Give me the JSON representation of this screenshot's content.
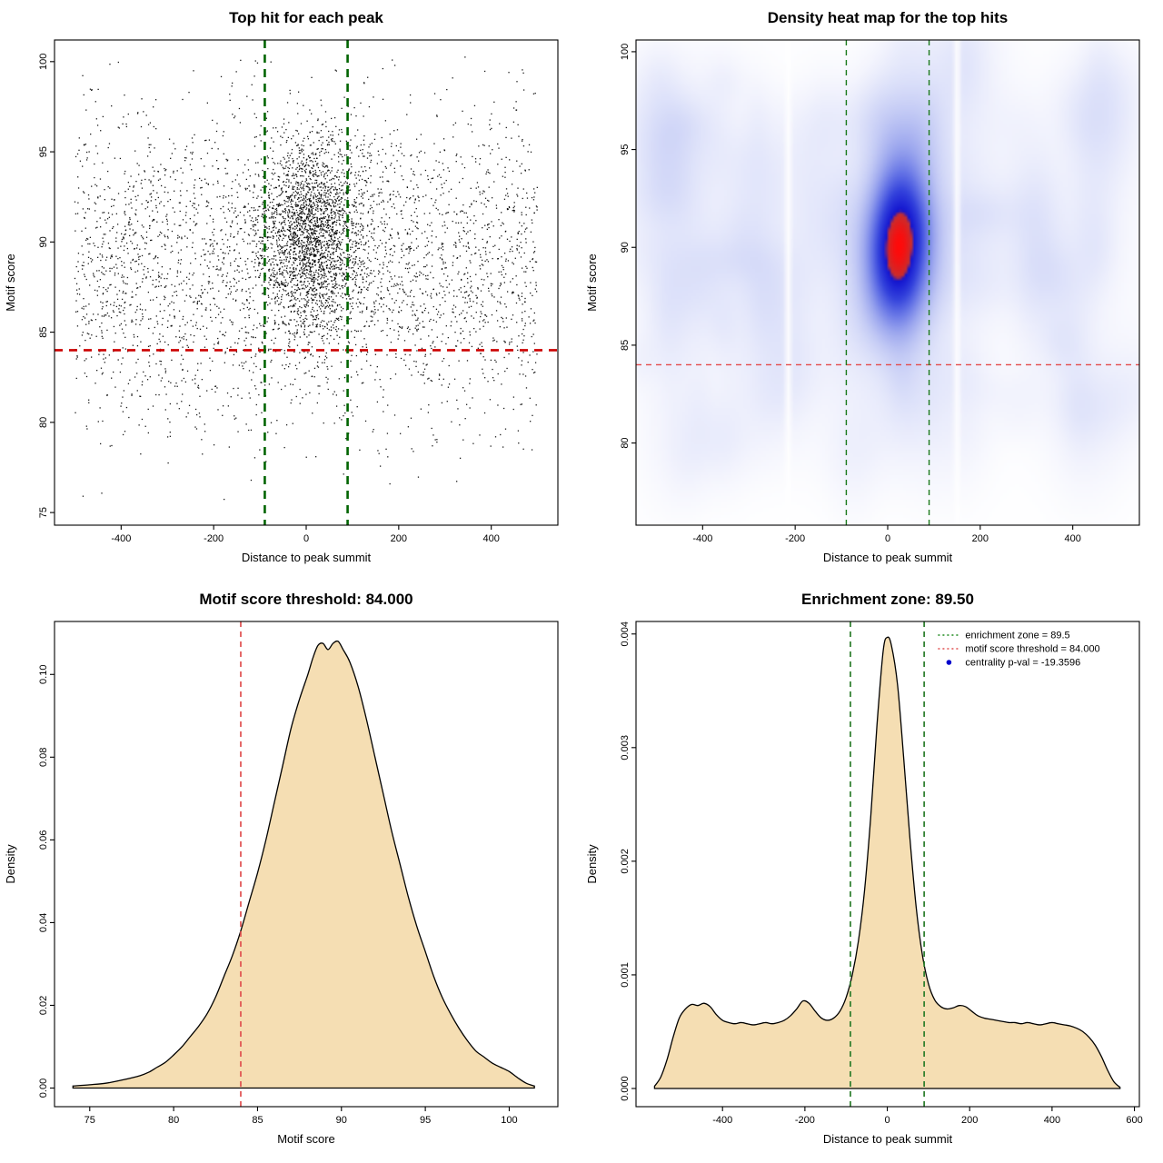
{
  "figure": {
    "background": "#ffffff"
  },
  "chart_data": [
    {
      "id": "top-hits-scatter",
      "type": "scatter",
      "title": "Top hit for each peak",
      "xlabel": "Distance to peak summit",
      "ylabel": "Motif score",
      "xlim": [
        -544,
        544
      ],
      "ylim": [
        74.3,
        101.2
      ],
      "xtick_vals": [
        -400,
        -200,
        0,
        200,
        400
      ],
      "xtick_labels": [
        "-400",
        "-200",
        "0",
        "200",
        "400"
      ],
      "ytick_vals": [
        75,
        80,
        85,
        90,
        95,
        100
      ],
      "ytick_labels": [
        "75",
        "80",
        "85",
        "90",
        "95",
        "100"
      ],
      "point_color": "#000000",
      "threshold_y": 84,
      "threshold_line_color": "#cc0000",
      "zone_x": [
        -89.5,
        89.5
      ],
      "zone_line_color": "#006400",
      "points_model": {
        "seed": 20240501,
        "background": {
          "n": 3300,
          "x_range": [
            -500,
            500
          ],
          "y_mean": 88.6,
          "y_sd": 4.4,
          "y_clip": [
            75.5,
            100.3
          ]
        },
        "cluster": {
          "n": 2350,
          "x_mean": 12,
          "x_sd": 58,
          "x_clip": [
            -420,
            420
          ],
          "y_mean": 90.4,
          "y_sd": 2.7,
          "y_clip": [
            80,
            100.3
          ]
        }
      }
    },
    {
      "id": "top-hits-heatmap",
      "type": "heatmap",
      "title": "Density heat map for the top hits",
      "xlabel": "Distance to peak summit",
      "ylabel": "Motif score",
      "xlim": [
        -544,
        544
      ],
      "ylim": [
        75.8,
        100.6
      ],
      "xtick_vals": [
        -400,
        -200,
        0,
        200,
        400
      ],
      "xtick_labels": [
        "-400",
        "-200",
        "0",
        "200",
        "400"
      ],
      "ytick_vals": [
        80,
        85,
        90,
        95,
        100
      ],
      "ytick_labels": [
        "80",
        "85",
        "90",
        "95",
        "100"
      ],
      "threshold_y": 84,
      "threshold_line_color": "#e34a4a",
      "zone_x": [
        -89.5,
        89.5
      ],
      "zone_line_color": "#1b7a1b",
      "colormap": [
        [
          0.0,
          "#ffffff"
        ],
        [
          0.05,
          "#f3f4fd"
        ],
        [
          0.12,
          "#dfe3fa"
        ],
        [
          0.22,
          "#c3caf5"
        ],
        [
          0.35,
          "#9aa5ee"
        ],
        [
          0.5,
          "#6574e6"
        ],
        [
          0.65,
          "#3443dc"
        ],
        [
          0.78,
          "#1c22d4"
        ],
        [
          0.83,
          "#1414cd"
        ],
        [
          0.86,
          "#c62f2f"
        ],
        [
          1.0,
          "#ff0a0a"
        ]
      ],
      "density_model": {
        "seed": 98765,
        "blobs": [
          {
            "x": 30,
            "y": 91.2,
            "sx": 40,
            "sy": 2.6,
            "a": 6.8
          },
          {
            "x": 14,
            "y": 88.9,
            "sx": 44,
            "sy": 2.4,
            "a": 6.6
          },
          {
            "x": 22,
            "y": 90.2,
            "sx": 70,
            "sy": 3.9,
            "a": 2.6
          }
        ],
        "band": {
          "y": 89.5,
          "sy": 6.5,
          "a": 0.38
        },
        "noise": {
          "n": 135,
          "x_range": [
            -545,
            545
          ],
          "y_range": [
            79,
            100.4
          ],
          "sx_range": [
            22,
            70
          ],
          "sy_range": [
            0.8,
            3.2
          ],
          "a_range": [
            0.18,
            0.55
          ]
        },
        "white_streaks": [
          {
            "x": -215,
            "sd": 5,
            "depth": 0.85
          },
          {
            "x": 150,
            "sd": 5,
            "depth": 0.85
          }
        ]
      }
    },
    {
      "id": "motif-score-density",
      "type": "area",
      "title": "Motif score threshold: 84.000",
      "xlabel": "Motif score",
      "ylabel": "Density",
      "xlim": [
        72.9,
        102.9
      ],
      "ylim": [
        -0.0045,
        0.1128
      ],
      "xtick_vals": [
        75,
        80,
        85,
        90,
        95,
        100
      ],
      "xtick_labels": [
        "75",
        "80",
        "85",
        "90",
        "95",
        "100"
      ],
      "ytick_vals": [
        0,
        0.02,
        0.04,
        0.06,
        0.08,
        0.1
      ],
      "ytick_labels": [
        "0.00",
        "0.02",
        "0.04",
        "0.06",
        "0.08",
        "0.10"
      ],
      "fill_color": "#f5deb3",
      "line_color": "#000000",
      "threshold_x": 84,
      "threshold_line_color": "#e05050",
      "x": [
        74.0,
        75,
        76,
        77,
        78,
        78.5,
        79,
        79.5,
        80,
        80.5,
        81,
        81.5,
        82,
        82.5,
        83,
        83.5,
        84,
        84.5,
        85,
        85.5,
        86,
        86.5,
        87,
        87.5,
        88,
        88.3,
        88.6,
        88.9,
        89.2,
        89.5,
        89.8,
        90.1,
        90.5,
        91,
        91.5,
        92,
        92.5,
        93,
        93.5,
        94,
        94.5,
        95,
        95.5,
        96,
        96.5,
        97,
        97.5,
        98,
        98.5,
        99,
        99.5,
        100,
        100.5,
        101,
        101.5
      ],
      "y": [
        0.0005,
        0.0008,
        0.0012,
        0.002,
        0.003,
        0.0038,
        0.005,
        0.0062,
        0.008,
        0.01,
        0.0125,
        0.015,
        0.018,
        0.022,
        0.027,
        0.032,
        0.038,
        0.045,
        0.052,
        0.06,
        0.069,
        0.078,
        0.087,
        0.094,
        0.1,
        0.104,
        0.107,
        0.1075,
        0.106,
        0.1075,
        0.108,
        0.106,
        0.103,
        0.097,
        0.089,
        0.08,
        0.071,
        0.062,
        0.054,
        0.046,
        0.039,
        0.033,
        0.027,
        0.022,
        0.018,
        0.0145,
        0.0115,
        0.009,
        0.0075,
        0.006,
        0.005,
        0.004,
        0.0025,
        0.0012,
        0.0005
      ]
    },
    {
      "id": "summit-distance-density",
      "type": "area",
      "title": "Enrichment zone: 89.50",
      "xlabel": "Distance to peak summit",
      "ylabel": "Density",
      "xlim": [
        -610,
        612
      ],
      "ylim": [
        -0.00016,
        0.00411
      ],
      "xtick_vals": [
        -400,
        -200,
        0,
        200,
        400,
        600
      ],
      "xtick_labels": [
        "-400",
        "-200",
        "0",
        "200",
        "400",
        "600"
      ],
      "ytick_vals": [
        0,
        0.001,
        0.002,
        0.003,
        0.004
      ],
      "ytick_labels": [
        "0.000",
        "0.001",
        "0.002",
        "0.003",
        "0.004"
      ],
      "fill_color": "#f5deb3",
      "line_color": "#000000",
      "zone_x": [
        -89.5,
        89.5
      ],
      "zone_line_color": "#2b7d2b",
      "legend": [
        {
          "label": "enrichment zone = 89.5",
          "color": "#1d8a1d",
          "symbol": "dotted-line"
        },
        {
          "label": "motif score threshold = 84.000",
          "color": "#e05050",
          "symbol": "dotted-line"
        },
        {
          "label": "centrality p-val = -19.3596",
          "color": "#0000cc",
          "symbol": "point"
        }
      ],
      "x": [
        -565,
        -550,
        -535,
        -520,
        -505,
        -490,
        -475,
        -460,
        -445,
        -430,
        -415,
        -400,
        -385,
        -370,
        -355,
        -340,
        -325,
        -310,
        -295,
        -280,
        -265,
        -250,
        -235,
        -220,
        -205,
        -190,
        -175,
        -160,
        -145,
        -130,
        -115,
        -100,
        -85,
        -70,
        -55,
        -40,
        -25,
        -10,
        0,
        10,
        25,
        40,
        55,
        70,
        85,
        100,
        115,
        130,
        145,
        160,
        175,
        190,
        205,
        220,
        235,
        250,
        265,
        280,
        295,
        310,
        325,
        340,
        355,
        370,
        385,
        400,
        415,
        430,
        445,
        460,
        475,
        490,
        505,
        520,
        535,
        550,
        565
      ],
      "y": [
        2e-05,
        0.0001,
        0.00025,
        0.00045,
        0.00062,
        0.0007,
        0.00074,
        0.00073,
        0.00075,
        0.00072,
        0.00065,
        0.0006,
        0.00058,
        0.00057,
        0.00058,
        0.00057,
        0.00056,
        0.00057,
        0.00058,
        0.00057,
        0.00058,
        0.0006,
        0.00064,
        0.0007,
        0.00077,
        0.00075,
        0.00068,
        0.00062,
        0.0006,
        0.00062,
        0.00068,
        0.0008,
        0.001,
        0.0013,
        0.00175,
        0.0024,
        0.0032,
        0.00385,
        0.00397,
        0.0039,
        0.00355,
        0.0029,
        0.0022,
        0.0016,
        0.00118,
        0.00092,
        0.00078,
        0.00072,
        0.0007,
        0.00071,
        0.00073,
        0.00072,
        0.00068,
        0.00064,
        0.00062,
        0.00061,
        0.0006,
        0.00059,
        0.00058,
        0.00058,
        0.00057,
        0.00058,
        0.00057,
        0.00056,
        0.00057,
        0.00058,
        0.00057,
        0.00056,
        0.00055,
        0.00053,
        0.0005,
        0.00045,
        0.00038,
        0.00028,
        0.00016,
        6e-05,
        1e-05
      ]
    }
  ]
}
